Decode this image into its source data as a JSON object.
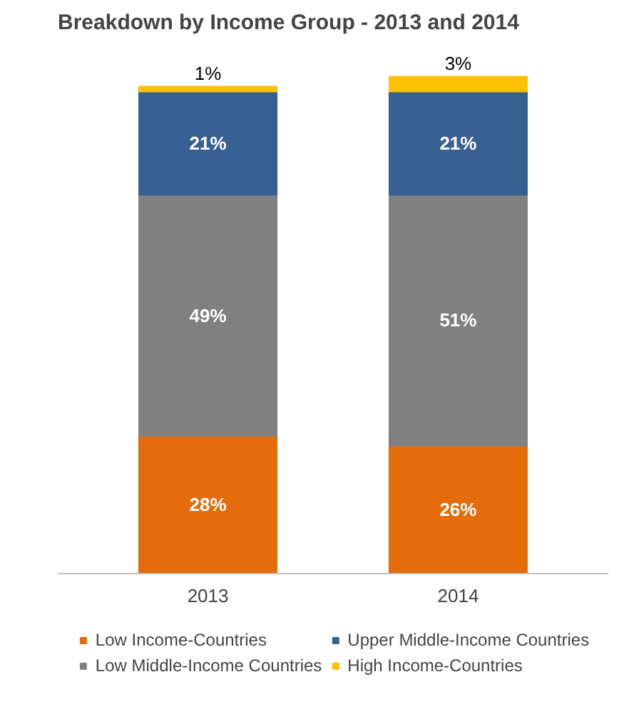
{
  "chart_data": {
    "type": "bar",
    "title": "Breakdown by Income Group  - 2013 and 2014",
    "categories": [
      "2013",
      "2014"
    ],
    "stacked": true,
    "legend": "bottom",
    "series": [
      {
        "name": "Low Income-Countries",
        "color": "#e46c0a",
        "values": [
          28,
          26
        ],
        "value_labels": [
          "28%",
          "26%"
        ]
      },
      {
        "name": "Low Middle-Income Countries",
        "color": "#808080",
        "values": [
          49,
          51
        ],
        "value_labels": [
          "49%",
          "51%"
        ]
      },
      {
        "name": "Upper Middle-Income Countries",
        "color": "#376092",
        "values": [
          21,
          21
        ],
        "value_labels": [
          "21%",
          "21%"
        ]
      },
      {
        "name": "High Income-Countries",
        "color": "#ffc000",
        "values": [
          1,
          3
        ],
        "value_labels": [
          "1%",
          "3%"
        ]
      }
    ]
  }
}
